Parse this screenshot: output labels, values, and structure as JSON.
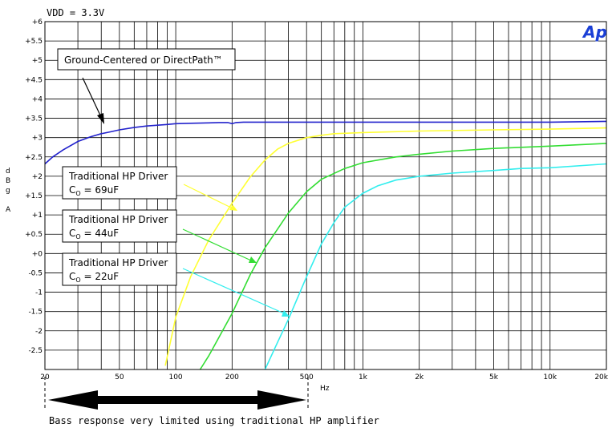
{
  "chart_data": {
    "type": "line",
    "title": "VDD = 3.3V",
    "xlabel": "Hz",
    "ylabel": "dBg A",
    "x_scale": "log",
    "xlim": [
      20,
      20000
    ],
    "ylim": [
      -3,
      6
    ],
    "grid": true,
    "logo": "Ap",
    "x_ticks": [
      "20",
      "50",
      "100",
      "200",
      "500",
      "1k",
      "2k",
      "5k",
      "10k",
      "20k"
    ],
    "y_ticks": [
      "+6",
      "+5.5",
      "+5",
      "+4.5",
      "+4",
      "+3.5",
      "+3",
      "+2.5",
      "+2",
      "+1.5",
      "+1",
      "+0.5",
      "+0",
      "-0.5",
      "-1",
      "-1.5",
      "-2",
      "-2.5"
    ],
    "series": [
      {
        "name": "Ground-Centered or DirectPath™",
        "color": "#2222cc",
        "x": [
          20,
          22,
          25,
          30,
          35,
          40,
          45,
          50,
          60,
          70,
          80,
          90,
          100,
          120,
          150,
          170,
          190,
          200,
          210,
          230,
          300,
          500,
          1000,
          2000,
          5000,
          10000,
          20000
        ],
        "y": [
          2.32,
          2.5,
          2.68,
          2.9,
          3.02,
          3.1,
          3.15,
          3.2,
          3.26,
          3.3,
          3.32,
          3.34,
          3.36,
          3.37,
          3.38,
          3.39,
          3.39,
          3.36,
          3.39,
          3.4,
          3.4,
          3.4,
          3.4,
          3.4,
          3.4,
          3.4,
          3.42
        ]
      },
      {
        "name": "Traditional HP Driver Co = 69uF",
        "color": "#ffff33",
        "x": [
          88,
          100,
          120,
          150,
          200,
          250,
          300,
          350,
          400,
          500,
          600,
          700,
          1000,
          2000,
          5000,
          10000,
          20000
        ],
        "y": [
          -2.9,
          -1.65,
          -0.6,
          0.35,
          1.3,
          1.98,
          2.42,
          2.7,
          2.85,
          3.0,
          3.06,
          3.1,
          3.13,
          3.17,
          3.2,
          3.22,
          3.25
        ]
      },
      {
        "name": "Traditional HP Driver Co = 44uF",
        "color": "#33dd33",
        "x": [
          135,
          150,
          200,
          250,
          300,
          400,
          500,
          600,
          800,
          1000,
          1500,
          2000,
          3000,
          5000,
          10000,
          20000
        ],
        "y": [
          -3.0,
          -2.65,
          -1.55,
          -0.55,
          0.15,
          1.05,
          1.6,
          1.92,
          2.2,
          2.35,
          2.5,
          2.57,
          2.65,
          2.72,
          2.78,
          2.85
        ]
      },
      {
        "name": "Traditional HP Driver Co = 22uF",
        "color": "#33eeee",
        "x": [
          300,
          350,
          400,
          500,
          600,
          700,
          800,
          1000,
          1200,
          1500,
          2000,
          3000,
          5000,
          7000,
          10000,
          20000
        ],
        "y": [
          -3.0,
          -2.3,
          -1.7,
          -0.6,
          0.25,
          0.8,
          1.2,
          1.56,
          1.75,
          1.9,
          2.0,
          2.08,
          2.15,
          2.2,
          2.22,
          2.32
        ]
      }
    ],
    "annotations": [
      {
        "id": "dp",
        "line1": "Ground-Centered or DirectPath™"
      },
      {
        "id": "c69",
        "line1": "Traditional HP Driver",
        "line2_prefix": "C",
        "line2_sub": "O",
        "line2_suffix": " = 69uF",
        "color": "#ffff33"
      },
      {
        "id": "c44",
        "line1": "Traditional HP Driver",
        "line2_prefix": "C",
        "line2_sub": "O",
        "line2_suffix": " = 44uF",
        "color": "#33dd33"
      },
      {
        "id": "c22",
        "line1": "Traditional HP Driver",
        "line2_prefix": "C",
        "line2_sub": "O",
        "line2_suffix": " = 22uF",
        "color": "#33eeee"
      }
    ],
    "footer_note": "Bass response very limited using traditional HP amplifier"
  }
}
